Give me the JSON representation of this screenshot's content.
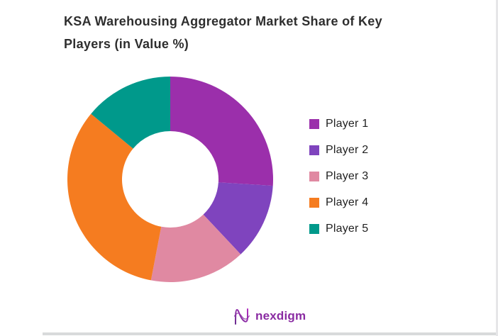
{
  "title": {
    "full": "KSA Warehousing Aggregator Market Share of Key Players (in Value %)",
    "line1": "KSA Warehousing Aggregator Market Share of Key",
    "line2": "Players (in Value %)"
  },
  "chart_data": {
    "type": "pie",
    "subtype": "donut",
    "title": "KSA Warehousing Aggregator Market Share of Key Players (in Value %)",
    "categories": [
      "Player 1",
      "Player 2",
      "Player 3",
      "Player 4",
      "Player 5"
    ],
    "values": [
      26,
      12,
      15,
      33,
      14
    ],
    "unit": "percent_of_value",
    "colors": [
      "#9b2fab",
      "#7f44be",
      "#e089a2",
      "#f57c20",
      "#00998b"
    ],
    "start_angle_deg": 0,
    "direction": "clockwise",
    "inner_radius_ratio": 0.47,
    "legend_position": "right",
    "data_labels_shown": false
  },
  "legend": {
    "items": [
      {
        "label": "Player 1",
        "color": "#9b2fab"
      },
      {
        "label": "Player 2",
        "color": "#7f44be"
      },
      {
        "label": "Player 3",
        "color": "#e089a2"
      },
      {
        "label": "Player 4",
        "color": "#f57c20"
      },
      {
        "label": "Player 5",
        "color": "#00998b"
      }
    ]
  },
  "footer": {
    "brand": "nexdigm",
    "brand_color": "#8a2ba2",
    "icon_color_start": "#6b2d90",
    "icon_color_end": "#b02fbe"
  }
}
